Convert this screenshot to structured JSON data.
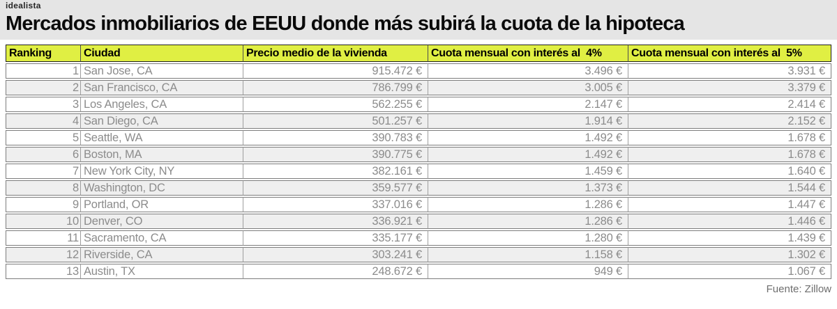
{
  "logo": {
    "text": "idealista"
  },
  "title": "Mercados inmobiliarios de EEUU donde más subirá la cuota de la hipoteca",
  "source": "Fuente: Zillow",
  "colors": {
    "header_bg": "#e0ef43",
    "header_text": "#000000",
    "row_bg": "#ffffff",
    "row_alt_bg": "#efefef",
    "cell_text": "#8c8c8c",
    "top_band_bg": "#e5e5e5",
    "row_border": "#7d7d7d",
    "header_border": "#1f1f1f"
  },
  "chart_data": {
    "type": "table",
    "title": "Mercados inmobiliarios de EEUU donde más subirá la cuota de la hipoteca",
    "columns": [
      "Ranking",
      "Ciudad",
      "Precio medio de la vivienda",
      "Cuota mensual con interés al  4%",
      "Cuota mensual con interés al  5%"
    ],
    "column_alignments": [
      "right",
      "left",
      "right",
      "right",
      "right"
    ],
    "rows": [
      [
        "1",
        "San Jose, CA",
        "915.472 €",
        "3.496 €",
        "3.931 €"
      ],
      [
        "2",
        "San Francisco, CA",
        "786.799 €",
        "3.005 €",
        "3.379 €"
      ],
      [
        "3",
        "Los Angeles, CA",
        "562.255 €",
        "2.147 €",
        "2.414 €"
      ],
      [
        "4",
        "San Diego, CA",
        "501.257 €",
        "1.914 €",
        "2.152 €"
      ],
      [
        "5",
        "Seattle, WA",
        "390.783 €",
        "1.492 €",
        "1.678 €"
      ],
      [
        "6",
        "Boston, MA",
        "390.775 €",
        "1.492 €",
        "1.678 €"
      ],
      [
        "7",
        "New York City, NY",
        "382.161 €",
        "1.459 €",
        "1.640 €"
      ],
      [
        "8",
        "Washington, DC",
        "359.577 €",
        "1.373 €",
        "1.544 €"
      ],
      [
        "9",
        "Portland, OR",
        "337.016 €",
        "1.286 €",
        "1.447 €"
      ],
      [
        "10",
        "Denver, CO",
        "336.921 €",
        "1.286 €",
        "1.446 €"
      ],
      [
        "11",
        "Sacramento, CA",
        "335.177 €",
        "1.280 €",
        "1.439 €"
      ],
      [
        "12",
        "Riverside, CA",
        "303.241 €",
        "1.158 €",
        "1.302 €"
      ],
      [
        "13",
        "Austin, TX",
        "248.672 €",
        "949 €",
        "1.067 €"
      ]
    ],
    "source": "Fuente: Zillow"
  }
}
